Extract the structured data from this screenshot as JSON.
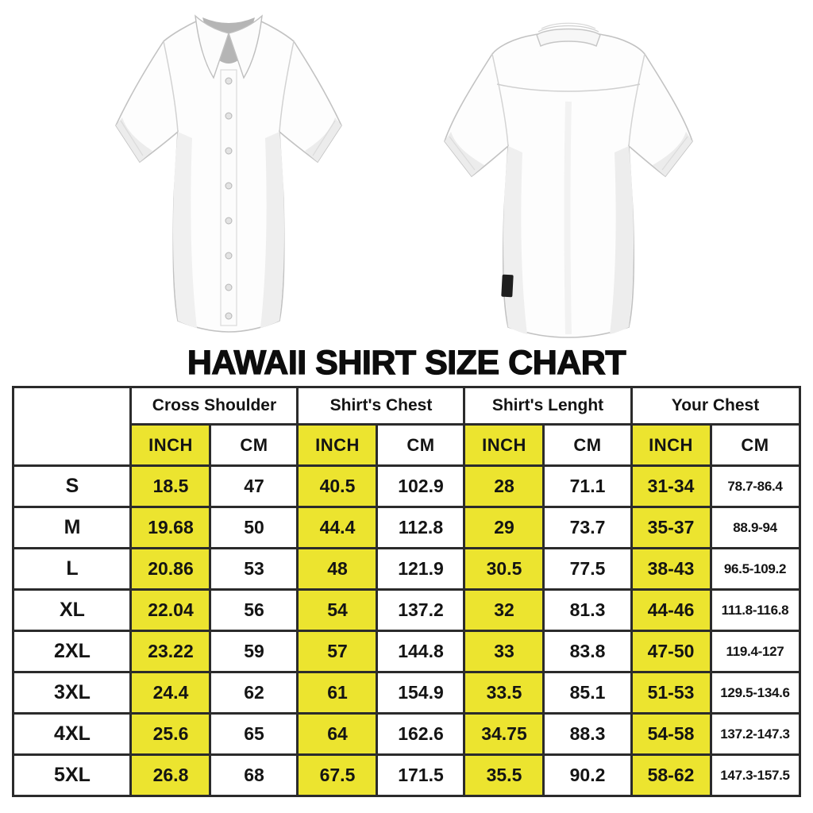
{
  "page": {
    "title": "HAWAII SHIRT SIZE CHART"
  },
  "images": {
    "front": "white-short-sleeve-button-shirt-front-view",
    "back": "white-short-sleeve-button-shirt-back-view"
  },
  "colors": {
    "highlight_yellow": "#ECE42F",
    "table_border": "#2B2B2B",
    "text": "#141414"
  },
  "chart_data": {
    "type": "table",
    "title": "HAWAII SHIRT SIZE CHART",
    "corner_label": "",
    "column_groups": [
      "Cross Shoulder",
      "Shirt's Chest",
      "Shirt's Lenght",
      "Your Chest"
    ],
    "units": [
      "INCH",
      "CM"
    ],
    "rows": [
      [
        "S",
        "18.5",
        "47",
        "40.5",
        "102.9",
        "28",
        "71.1",
        "31-34",
        "78.7-86.4"
      ],
      [
        "M",
        "19.68",
        "50",
        "44.4",
        "112.8",
        "29",
        "73.7",
        "35-37",
        "88.9-94"
      ],
      [
        "L",
        "20.86",
        "53",
        "48",
        "121.9",
        "30.5",
        "77.5",
        "38-43",
        "96.5-109.2"
      ],
      [
        "XL",
        "22.04",
        "56",
        "54",
        "137.2",
        "32",
        "81.3",
        "44-46",
        "111.8-116.8"
      ],
      [
        "2XL",
        "23.22",
        "59",
        "57",
        "144.8",
        "33",
        "83.8",
        "47-50",
        "119.4-127"
      ],
      [
        "3XL",
        "24.4",
        "62",
        "61",
        "154.9",
        "33.5",
        "85.1",
        "51-53",
        "129.5-134.6"
      ],
      [
        "4XL",
        "25.6",
        "65",
        "64",
        "162.6",
        "34.75",
        "88.3",
        "54-58",
        "137.2-147.3"
      ],
      [
        "5XL",
        "26.8",
        "68",
        "67.5",
        "171.5",
        "35.5",
        "90.2",
        "58-62",
        "147.3-157.5"
      ]
    ]
  }
}
